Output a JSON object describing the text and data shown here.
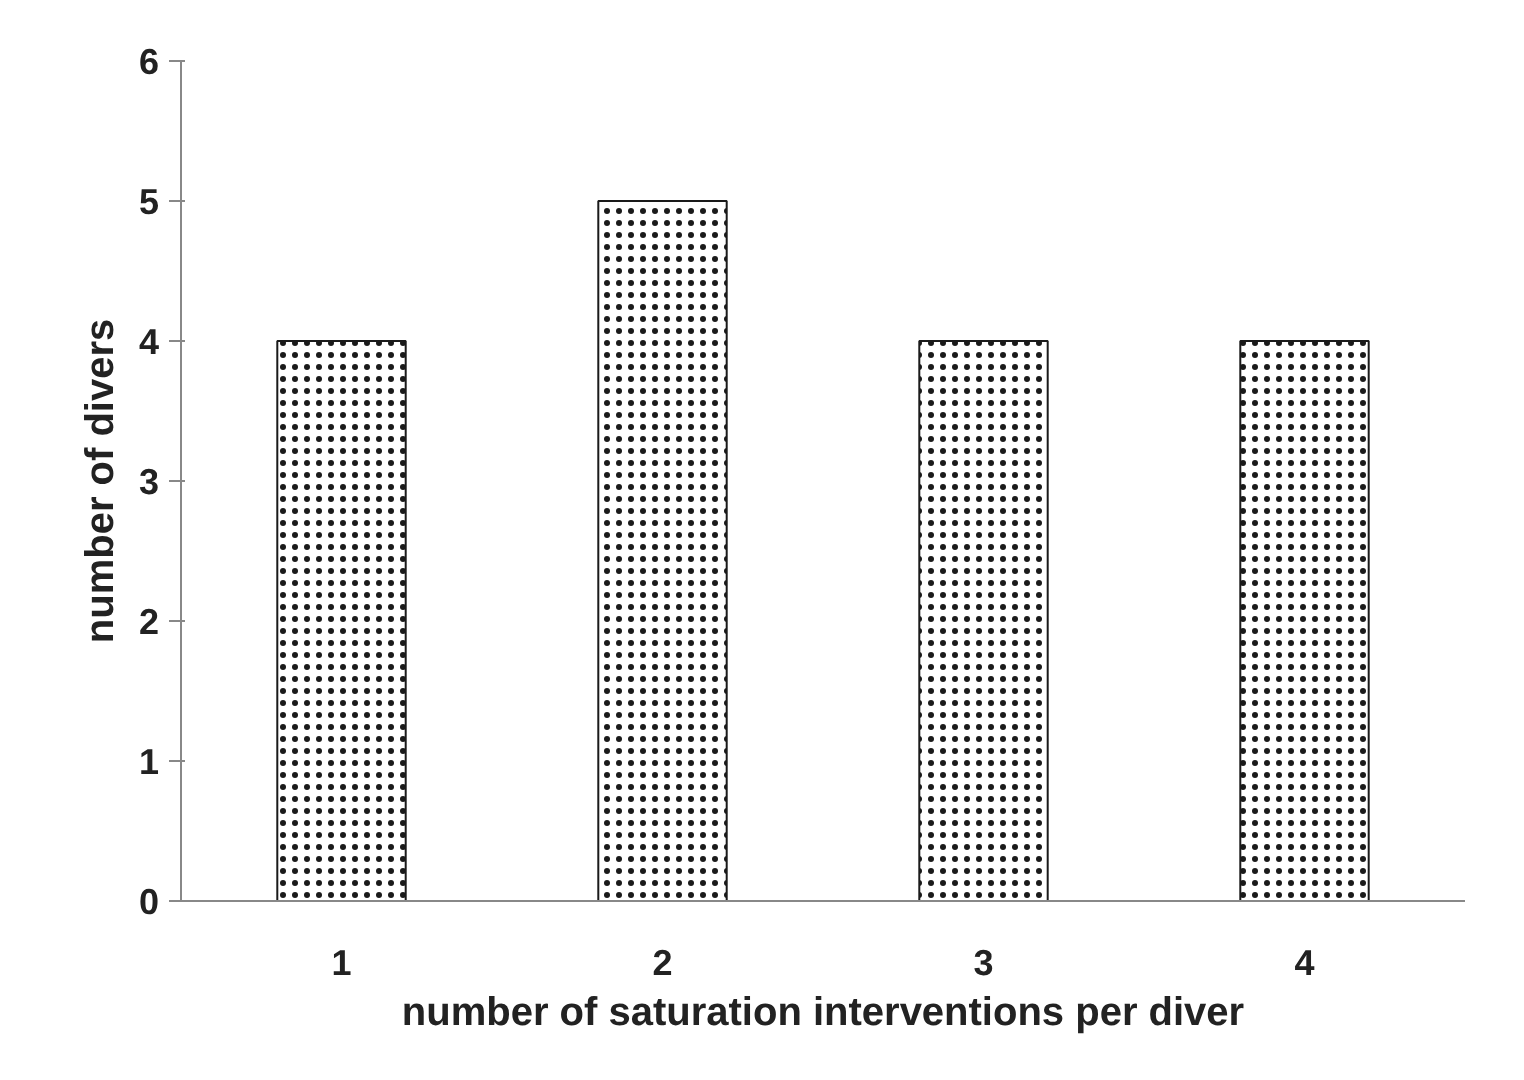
{
  "chart_data": {
    "type": "bar",
    "xlabel": "number of saturation interventions per diver",
    "ylabel": "number of divers",
    "categories": [
      "1",
      "2",
      "3",
      "4"
    ],
    "values": [
      4,
      5,
      4,
      4
    ],
    "color": "#1a1a1a",
    "ylim": [
      0,
      6
    ],
    "yticks": [
      0,
      1,
      2,
      3,
      4,
      5,
      6
    ],
    "grid": false
  }
}
